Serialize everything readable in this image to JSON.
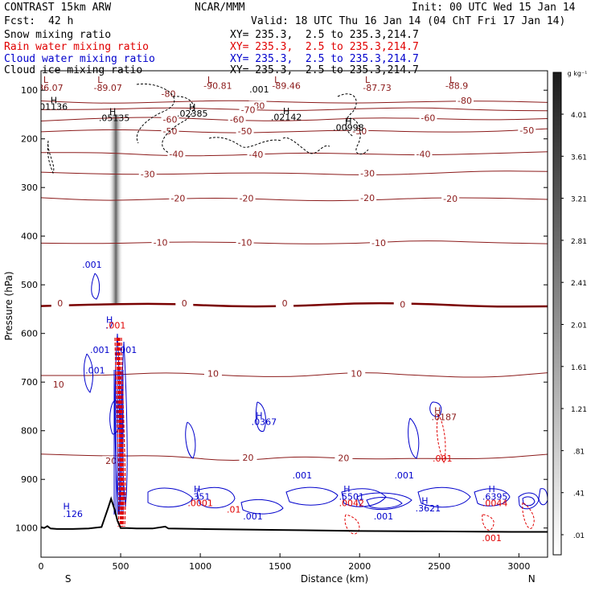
{
  "header": {
    "model": "CONTRAST 15km ARW",
    "center": "NCAR/MMM",
    "init": "Init: 00 UTC Wed 15 Jan 14",
    "fcst_label": "Fcst:",
    "fcst_value": "42 h",
    "valid": "Valid: 18 UTC Thu 16 Jan 14 (04 ChT Fri 17 Jan 14)"
  },
  "fields": [
    {
      "name": "Snow mixing ratio",
      "xy": "XY= 235.3,  2.5 to 235.3,214.7",
      "color": "#000000"
    },
    {
      "name": "Rain water mixing ratio",
      "xy": "XY= 235.3,  2.5 to 235.3,214.7",
      "color": "#e00000"
    },
    {
      "name": "Cloud water mixing ratio",
      "xy": "XY= 235.3,  2.5 to 235.3,214.7",
      "color": "#0000cc"
    },
    {
      "name": "Cloud ice mixing ratio",
      "xy": "XY= 235.3,  2.5 to 235.3,214.7",
      "color": "#000000"
    }
  ],
  "colors": {
    "temperature": "#8b1a1a",
    "zero_isotherm": "#7a0000",
    "rain": "#e00000",
    "cloud_water": "#0000cc",
    "terrain": "#000000"
  },
  "chart_data": {
    "type": "contour",
    "xlabel": "Distance (km)",
    "ylabel": "Pressure (hPa)",
    "xlim": [
      0,
      3180
    ],
    "ylim": [
      1060,
      60
    ],
    "x_ticks": [
      0,
      500,
      1000,
      1500,
      2000,
      2500,
      3000
    ],
    "x_tick_labels": [
      "0",
      "500",
      "1000",
      "1500",
      "2000",
      "2500",
      "3000"
    ],
    "y_ticks": [
      100,
      200,
      300,
      400,
      500,
      600,
      700,
      800,
      900,
      1000
    ],
    "y_tick_labels": [
      "100",
      "200",
      "300",
      "400",
      "500",
      "600",
      "700",
      "800",
      "900",
      "1000"
    ],
    "x_end_labels": {
      "left": "S",
      "right": "N"
    },
    "colorbar": {
      "unit": "g kg⁻¹",
      "levels": [
        4.01,
        3.61,
        3.21,
        2.81,
        2.41,
        2.01,
        1.61,
        1.21,
        0.81,
        0.41,
        0.01
      ],
      "labels": [
        "4.01",
        "3.61",
        "3.21",
        "2.81",
        "2.41",
        "2.01",
        "1.61",
        "1.21",
        ".81",
        ".41",
        ".01"
      ]
    },
    "snow_column": {
      "x_km": 470,
      "p_top": 150,
      "p_bottom": 540
    },
    "terrain": {
      "x": [
        0,
        20,
        40,
        60,
        100,
        200,
        300,
        380,
        420,
        440,
        460,
        480,
        500,
        540,
        600,
        700,
        780,
        800,
        1000,
        1500,
        2000,
        2500,
        3000,
        3180
      ],
      "p": [
        998,
        1000,
        996,
        1001,
        1002,
        1002,
        1001,
        998,
        960,
        940,
        960,
        985,
        1000,
        1000,
        1001,
        1001,
        997,
        1001,
        1002,
        1004,
        1006,
        1007,
        1008,
        1008
      ]
    },
    "isotherms": [
      {
        "label": "-80",
        "p": [
          122,
          124,
          125,
          124,
          123,
          124,
          126,
          124,
          122
        ],
        "label_pos": [
          [
            800,
            107
          ],
          [
            1360,
            132
          ],
          [
            2660,
            121
          ]
        ],
        "labels": [
          "-80",
          "-80",
          "-80"
        ]
      },
      {
        "label": "-70",
        "p": [
          137,
          138,
          139,
          140,
          139,
          138,
          139,
          140,
          139
        ],
        "label_pos": [
          [
            1300,
            140
          ]
        ],
        "labels": [
          "-70"
        ]
      },
      {
        "label": "-60",
        "p": [
          160,
          159,
          158,
          160,
          161,
          160,
          159,
          158,
          158
        ],
        "label_pos": [
          [
            810,
            160
          ],
          [
            1230,
            160
          ],
          [
            2430,
            157
          ]
        ],
        "labels": [
          "-60",
          "-60",
          "-60"
        ]
      },
      {
        "label": "-50",
        "p": [
          185,
          184,
          183,
          185,
          186,
          185,
          184,
          183,
          182
        ],
        "label_pos": [
          [
            810,
            184
          ],
          [
            1280,
            184
          ],
          [
            2000,
            184
          ],
          [
            3050,
            182
          ]
        ],
        "labels": [
          "-50",
          "-50",
          "-50",
          "-50"
        ]
      },
      {
        "label": "-40",
        "p": [
          231,
          230,
          232,
          233,
          232,
          231,
          230,
          231,
          230
        ],
        "label_pos": [
          [
            850,
            231
          ],
          [
            1350,
            232
          ],
          [
            2400,
            231
          ]
        ],
        "labels": [
          "-40",
          "-40",
          "-40"
        ]
      },
      {
        "label": "-30",
        "p": [
          272,
          271,
          270,
          272,
          273,
          272,
          270,
          269,
          268
        ],
        "label_pos": [
          [
            670,
            272
          ],
          [
            2050,
            271
          ]
        ],
        "labels": [
          "-30",
          "-30"
        ]
      },
      {
        "label": "-20",
        "p": [
          322,
          324,
          323,
          325,
          326,
          324,
          323,
          324,
          322
        ],
        "label_pos": [
          [
            860,
            322
          ],
          [
            1290,
            322
          ],
          [
            2050,
            321
          ],
          [
            2570,
            323
          ]
        ],
        "labels": [
          "-20",
          "-20",
          "-20",
          "-20"
        ]
      },
      {
        "label": "-10",
        "p": [
          412,
          413,
          415,
          414,
          413,
          414,
          412,
          413,
          412
        ],
        "label_pos": [
          [
            750,
            413
          ],
          [
            1280,
            413
          ],
          [
            2120,
            414
          ]
        ],
        "labels": [
          "-10",
          "-10",
          "-10"
        ]
      },
      {
        "label": "0",
        "p": [
          540,
          541,
          542,
          543,
          541,
          540,
          541,
          542,
          543
        ],
        "label_pos": [
          [
            120,
            538
          ],
          [
            900,
            538
          ],
          [
            1530,
            538
          ],
          [
            2270,
            540
          ]
        ],
        "labels": [
          "0",
          "0",
          "0",
          "0"
        ]
      },
      {
        "label": "10",
        "p": [
          685,
          690,
          680,
          684,
          690,
          682,
          686,
          688,
          683
        ],
        "label_pos": [
          [
            110,
            705
          ],
          [
            1080,
            682
          ],
          [
            1980,
            682
          ]
        ],
        "labels": [
          "10",
          "10",
          "10"
        ]
      },
      {
        "label": "20",
        "p": [
          850,
          855,
          848,
          862,
          855,
          860,
          853,
          858,
          852
        ],
        "label_pos": [
          [
            440,
            862
          ],
          [
            1300,
            855
          ],
          [
            1900,
            856
          ]
        ],
        "labels": [
          "20",
          "20",
          "20"
        ]
      }
    ],
    "isotherm_x": [
      0,
      400,
      800,
      1200,
      1600,
      2000,
      2400,
      2800,
      3180
    ],
    "annotations": [
      {
        "text": "L",
        "x": 30,
        "y": 85,
        "color": "#8b1a1a"
      },
      {
        "text": "-86.07",
        "x": 50,
        "y": 101,
        "color": "#8b1a1a"
      },
      {
        "text": "L",
        "x": 370,
        "y": 85,
        "color": "#8b1a1a"
      },
      {
        "text": "-89.07",
        "x": 420,
        "y": 101,
        "color": "#8b1a1a"
      },
      {
        "text": "L",
        "x": 1060,
        "y": 85,
        "color": "#8b1a1a"
      },
      {
        "text": "-90.81",
        "x": 1110,
        "y": 97,
        "color": "#8b1a1a"
      },
      {
        "text": "L",
        "x": 1480,
        "y": 85,
        "color": "#8b1a1a"
      },
      {
        "text": "-89.46",
        "x": 1540,
        "y": 97,
        "color": "#8b1a1a"
      },
      {
        "text": "L",
        "x": 2050,
        "y": 85,
        "color": "#8b1a1a"
      },
      {
        "text": "-87.73",
        "x": 2110,
        "y": 101,
        "color": "#8b1a1a"
      },
      {
        "text": "L",
        "x": 2580,
        "y": 85,
        "color": "#8b1a1a"
      },
      {
        "text": "-88.9",
        "x": 2610,
        "y": 97,
        "color": "#8b1a1a"
      },
      {
        "text": ".001",
        "x": 1370,
        "y": 105,
        "color": "#000000"
      },
      {
        "text": "H",
        "x": 80,
        "y": 127,
        "color": "#000000"
      },
      {
        "text": ".01136",
        "x": 70,
        "y": 140,
        "color": "#000000"
      },
      {
        "text": "H",
        "x": 450,
        "y": 150,
        "color": "#000000"
      },
      {
        "text": ".05135",
        "x": 460,
        "y": 163,
        "color": "#000000"
      },
      {
        "text": "H",
        "x": 950,
        "y": 141,
        "color": "#000000"
      },
      {
        "text": ".02385",
        "x": 950,
        "y": 154,
        "color": "#000000"
      },
      {
        "text": "H",
        "x": 1540,
        "y": 149,
        "color": "#000000"
      },
      {
        "text": ".02142",
        "x": 1540,
        "y": 162,
        "color": "#000000"
      },
      {
        "text": "H",
        "x": 1930,
        "y": 170,
        "color": "#000000"
      },
      {
        "text": ".00998",
        "x": 1930,
        "y": 183,
        "color": "#000000"
      },
      {
        "text": ".001",
        "x": 320,
        "y": 465,
        "color": "#0000cc"
      },
      {
        "text": "H",
        "x": 430,
        "y": 578,
        "color": "#0000cc"
      },
      {
        "text": ".7",
        "x": 430,
        "y": 590,
        "color": "#0000cc"
      },
      {
        "text": ".001",
        "x": 470,
        "y": 590,
        "color": "#e00000"
      },
      {
        "text": ".001",
        "x": 370,
        "y": 640,
        "color": "#0000cc"
      },
      {
        "text": ".001",
        "x": 540,
        "y": 640,
        "color": "#0000cc"
      },
      {
        "text": ".001",
        "x": 340,
        "y": 682,
        "color": "#0000cc"
      },
      {
        "text": "H",
        "x": 1370,
        "y": 775,
        "color": "#0000cc"
      },
      {
        "text": ".0367",
        "x": 1400,
        "y": 788,
        "color": "#0000cc"
      },
      {
        "text": "H",
        "x": 2490,
        "y": 765,
        "color": "#8b1a1a"
      },
      {
        "text": ".0187",
        "x": 2530,
        "y": 778,
        "color": "#8b1a1a"
      },
      {
        "text": ".001",
        "x": 2520,
        "y": 863,
        "color": "#e00000"
      },
      {
        "text": "H",
        "x": 160,
        "y": 962,
        "color": "#0000cc"
      },
      {
        "text": ".126",
        "x": 200,
        "y": 977,
        "color": "#0000cc"
      },
      {
        "text": "H",
        "x": 980,
        "y": 926,
        "color": "#0000cc"
      },
      {
        "text": ".351",
        "x": 1000,
        "y": 942,
        "color": "#0000cc"
      },
      {
        "text": ".0001",
        "x": 1000,
        "y": 955,
        "color": "#e00000"
      },
      {
        "text": ".01",
        "x": 1210,
        "y": 968,
        "color": "#e00000"
      },
      {
        "text": ".001",
        "x": 1330,
        "y": 982,
        "color": "#0000cc"
      },
      {
        "text": ".001",
        "x": 1640,
        "y": 898,
        "color": "#0000cc"
      },
      {
        "text": "H",
        "x": 1920,
        "y": 926,
        "color": "#0000cc"
      },
      {
        "text": ".5501",
        "x": 1950,
        "y": 942,
        "color": "#0000cc"
      },
      {
        "text": ".0042",
        "x": 1950,
        "y": 955,
        "color": "#e00000"
      },
      {
        "text": ".001",
        "x": 2280,
        "y": 898,
        "color": "#0000cc"
      },
      {
        "text": ".001",
        "x": 2150,
        "y": 982,
        "color": "#0000cc"
      },
      {
        "text": "H",
        "x": 2410,
        "y": 950,
        "color": "#0000cc"
      },
      {
        "text": ".3621",
        "x": 2430,
        "y": 966,
        "color": "#0000cc"
      },
      {
        "text": "H",
        "x": 2830,
        "y": 926,
        "color": "#0000cc"
      },
      {
        "text": ".6395",
        "x": 2850,
        "y": 942,
        "color": "#0000cc"
      },
      {
        "text": ".0044",
        "x": 2850,
        "y": 955,
        "color": "#e00000"
      },
      {
        "text": ".001",
        "x": 2830,
        "y": 1027,
        "color": "#e00000"
      }
    ]
  }
}
